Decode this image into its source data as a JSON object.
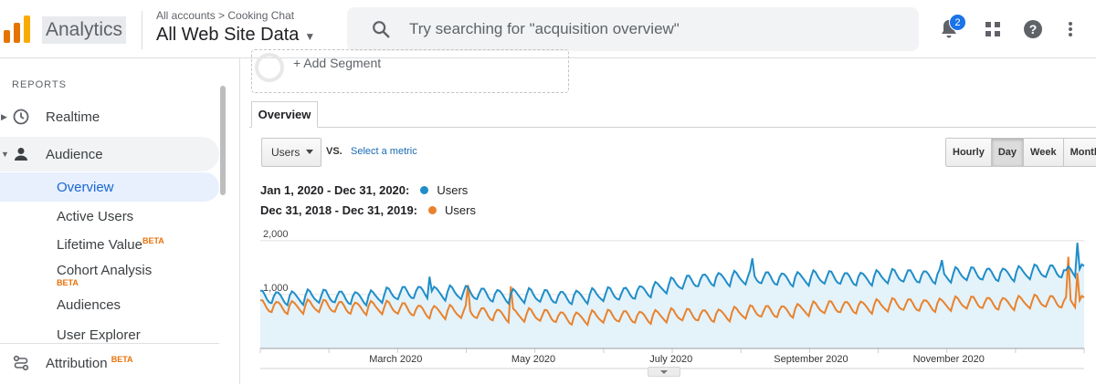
{
  "header": {
    "app_name": "Analytics",
    "breadcrumb": "All accounts > Cooking Chat",
    "view_name": "All Web Site Data",
    "search_placeholder": "Try searching for \"acquisition overview\"",
    "notification_count": "2",
    "icons": [
      "search-icon",
      "bell-icon",
      "apps-grid-icon",
      "help-icon",
      "more-vert-icon"
    ],
    "logo_colors": [
      "#f9ab00",
      "#e37400"
    ]
  },
  "sidebar": {
    "section_label": "REPORTS",
    "items": [
      {
        "label": "Realtime",
        "icon": "clock-icon"
      },
      {
        "label": "Audience",
        "icon": "person-icon"
      },
      {
        "label": "Attribution",
        "icon": "attribution-icon",
        "badge": "BETA"
      }
    ],
    "audience_sub_items": [
      {
        "label": "Overview"
      },
      {
        "label": "Active Users"
      },
      {
        "label": "Lifetime Value",
        "badge": "BETA"
      },
      {
        "label": "Cohort Analysis",
        "badge": "BETA"
      },
      {
        "label": "Audiences"
      },
      {
        "label": "User Explorer"
      }
    ]
  },
  "main": {
    "add_segment": "+ Add Segment",
    "tab": "Overview",
    "metric_select": "Users",
    "vs_label": "VS.",
    "select_metric": "Select a metric",
    "granularity": [
      "Hourly",
      "Day",
      "Week",
      "Month"
    ],
    "granularity_selected": "Day",
    "legend": [
      {
        "range": "Jan 1, 2020 - Dec 31, 2020:",
        "series": "Users",
        "color": "#1f8dc8"
      },
      {
        "range": "Dec 31, 2018 - Dec 31, 2019:",
        "series": "Users",
        "color": "#e8822c"
      }
    ]
  },
  "chart_data": {
    "type": "line",
    "y_ticks": [
      "2,000",
      "1,000"
    ],
    "y_tick_values": [
      2000,
      1000
    ],
    "ylim": [
      0,
      2200
    ],
    "x_tick_labels": [
      "March 2020",
      "May 2020",
      "July 2020",
      "September 2020",
      "November 2020"
    ],
    "x_tick_days": [
      60,
      121,
      182,
      244,
      305
    ],
    "x_range_days": [
      0,
      365
    ],
    "grid": true,
    "series": [
      {
        "name": "Users",
        "period": "Jan 1, 2020 - Dec 31, 2020",
        "color": "#1f8dc8",
        "fill": "#e4f2fa",
        "weekly_baseline": [
          [
            0,
            950
          ],
          [
            50,
            950
          ],
          [
            70,
            1050
          ],
          [
            130,
            950
          ],
          [
            160,
            1000
          ],
          [
            200,
            1300
          ],
          [
            260,
            1300
          ],
          [
            300,
            1350
          ],
          [
            340,
            1400
          ],
          [
            365,
            1450
          ]
        ],
        "weekly_amplitude": 150,
        "spikes": [
          [
            75,
            1330
          ],
          [
            218,
            1670
          ],
          [
            302,
            1640
          ],
          [
            357,
            1450
          ],
          [
            362,
            1960
          ]
        ]
      },
      {
        "name": "Users",
        "period": "Dec 31, 2018 - Dec 31, 2019",
        "color": "#e8822c",
        "weekly_baseline": [
          [
            0,
            780
          ],
          [
            50,
            760
          ],
          [
            80,
            680
          ],
          [
            140,
            570
          ],
          [
            200,
            620
          ],
          [
            260,
            770
          ],
          [
            320,
            840
          ],
          [
            365,
            870
          ]
        ],
        "weekly_amplitude": 140,
        "spikes": [
          [
            92,
            1180
          ],
          [
            111,
            1150
          ],
          [
            358,
            1700
          ],
          [
            362,
            1400
          ]
        ]
      }
    ]
  }
}
